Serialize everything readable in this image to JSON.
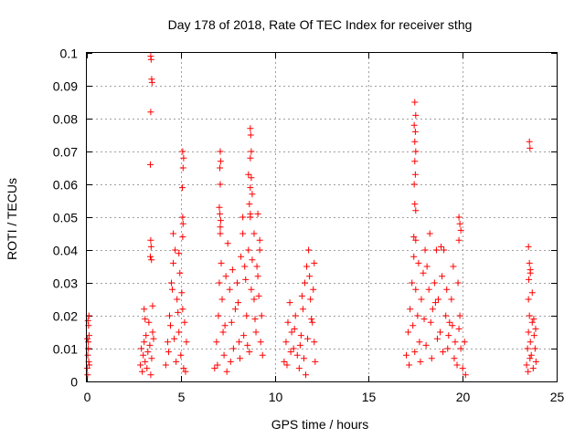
{
  "chart_data": {
    "type": "scatter",
    "title": "Day 178 of 2018, Rate Of TEC Index for receiver sthg",
    "xlabel": "GPS time / hours",
    "ylabel": "ROTI / TECUs",
    "xlim": [
      0,
      25
    ],
    "ylim": [
      0,
      0.1
    ],
    "xticks": [
      0,
      5,
      10,
      15,
      20,
      25
    ],
    "xtick_labels": [
      "0",
      "5",
      "10",
      "15",
      "20",
      "25"
    ],
    "yticks": [
      0,
      0.01,
      0.02,
      0.03,
      0.04,
      0.05,
      0.06,
      0.07,
      0.08,
      0.09,
      0.1
    ],
    "ytick_labels": [
      "0",
      "0.01",
      "0.02",
      "0.03",
      "0.04",
      "0.05",
      "0.06",
      "0.07",
      "0.08",
      "0.09",
      "0.1"
    ],
    "grid": true,
    "marker": "+",
    "color": "#ff0000",
    "series": [
      {
        "name": "ROTI",
        "points": [
          [
            0.02,
            0.004
          ],
          [
            0.05,
            0.008
          ],
          [
            0.08,
            0.012
          ],
          [
            0.1,
            0.006
          ],
          [
            0.12,
            0.014
          ],
          [
            0.04,
            0.002
          ],
          [
            0.07,
            0.01
          ],
          [
            0.09,
            0.017
          ],
          [
            0.11,
            0.02
          ],
          [
            0.06,
            0.0185
          ],
          [
            0.13,
            0.005
          ],
          [
            0.03,
            0.013
          ],
          [
            2.85,
            0.005
          ],
          [
            2.9,
            0.01
          ],
          [
            2.95,
            0.003
          ],
          [
            3.0,
            0.008
          ],
          [
            3.05,
            0.012
          ],
          [
            3.1,
            0.006
          ],
          [
            3.15,
            0.014
          ],
          [
            3.2,
            0.004
          ],
          [
            3.25,
            0.009
          ],
          [
            3.3,
            0.018
          ],
          [
            3.35,
            0.011
          ],
          [
            3.4,
            0.002
          ],
          [
            3.45,
            0.007
          ],
          [
            3.5,
            0.015
          ],
          [
            3.55,
            0.013
          ],
          [
            3.05,
            0.022
          ],
          [
            3.1,
            0.019
          ],
          [
            3.5,
            0.023
          ],
          [
            3.4,
            0.099
          ],
          [
            3.42,
            0.098
          ],
          [
            3.45,
            0.092
          ],
          [
            3.47,
            0.091
          ],
          [
            3.4,
            0.082
          ],
          [
            3.38,
            0.066
          ],
          [
            3.4,
            0.043
          ],
          [
            3.42,
            0.041
          ],
          [
            3.38,
            0.038
          ],
          [
            3.44,
            0.037
          ],
          [
            4.2,
            0.005
          ],
          [
            4.3,
            0.012
          ],
          [
            4.4,
            0.02
          ],
          [
            4.5,
            0.03
          ],
          [
            4.6,
            0.036
          ],
          [
            4.7,
            0.04
          ],
          [
            4.8,
            0.025
          ],
          [
            4.9,
            0.015
          ],
          [
            5.0,
            0.008
          ],
          [
            5.1,
            0.022
          ],
          [
            5.2,
            0.018
          ],
          [
            5.3,
            0.012
          ],
          [
            4.35,
            0.009
          ],
          [
            4.55,
            0.028
          ],
          [
            4.75,
            0.006
          ],
          [
            4.95,
            0.033
          ],
          [
            5.15,
            0.004
          ],
          [
            4.45,
            0.017
          ],
          [
            4.65,
            0.013
          ],
          [
            5.05,
            0.027
          ],
          [
            4.85,
            0.021
          ],
          [
            5.25,
            0.003
          ],
          [
            5.1,
            0.07
          ],
          [
            5.15,
            0.068
          ],
          [
            5.12,
            0.065
          ],
          [
            5.08,
            0.059
          ],
          [
            5.1,
            0.05
          ],
          [
            5.12,
            0.048
          ],
          [
            5.1,
            0.044
          ],
          [
            4.6,
            0.045
          ],
          [
            4.9,
            0.039
          ],
          [
            6.8,
            0.004
          ],
          [
            6.9,
            0.012
          ],
          [
            7.0,
            0.02
          ],
          [
            7.05,
            0.03
          ],
          [
            7.1,
            0.045
          ],
          [
            7.15,
            0.036
          ],
          [
            7.2,
            0.025
          ],
          [
            7.25,
            0.015
          ],
          [
            7.3,
            0.008
          ],
          [
            7.4,
            0.032
          ],
          [
            7.5,
            0.042
          ],
          [
            7.6,
            0.028
          ],
          [
            7.7,
            0.018
          ],
          [
            7.8,
            0.01
          ],
          [
            7.9,
            0.022
          ],
          [
            8.0,
            0.03
          ],
          [
            8.1,
            0.012
          ],
          [
            8.2,
            0.038
          ],
          [
            8.3,
            0.045
          ],
          [
            8.4,
            0.035
          ],
          [
            8.5,
            0.02
          ],
          [
            8.6,
            0.04
          ],
          [
            8.7,
            0.05
          ],
          [
            8.8,
            0.037
          ],
          [
            8.9,
            0.025
          ],
          [
            9.0,
            0.015
          ],
          [
            9.1,
            0.032
          ],
          [
            9.2,
            0.04
          ],
          [
            9.3,
            0.02
          ],
          [
            9.35,
            0.008
          ],
          [
            6.95,
            0.005
          ],
          [
            7.35,
            0.017
          ],
          [
            7.65,
            0.006
          ],
          [
            8.05,
            0.024
          ],
          [
            8.35,
            0.014
          ],
          [
            8.65,
            0.009
          ],
          [
            8.95,
            0.019
          ],
          [
            9.25,
            0.012
          ],
          [
            7.45,
            0.003
          ],
          [
            8.15,
            0.007
          ],
          [
            8.75,
            0.028
          ],
          [
            9.15,
            0.026
          ],
          [
            7.75,
            0.034
          ],
          [
            8.45,
            0.031
          ],
          [
            8.55,
            0.011
          ],
          [
            9.05,
            0.035
          ],
          [
            7.1,
            0.07
          ],
          [
            7.12,
            0.067
          ],
          [
            7.08,
            0.065
          ],
          [
            7.1,
            0.06
          ],
          [
            7.05,
            0.053
          ],
          [
            7.08,
            0.051
          ],
          [
            7.12,
            0.049
          ],
          [
            7.1,
            0.047
          ],
          [
            8.7,
            0.077
          ],
          [
            8.72,
            0.075
          ],
          [
            8.75,
            0.07
          ],
          [
            8.7,
            0.068
          ],
          [
            8.6,
            0.063
          ],
          [
            8.75,
            0.062
          ],
          [
            8.7,
            0.059
          ],
          [
            8.8,
            0.057
          ],
          [
            8.65,
            0.054
          ],
          [
            8.7,
            0.051
          ],
          [
            8.3,
            0.05
          ],
          [
            9.1,
            0.051
          ],
          [
            8.9,
            0.045
          ],
          [
            9.2,
            0.043
          ],
          [
            10.5,
            0.006
          ],
          [
            10.6,
            0.012
          ],
          [
            10.7,
            0.018
          ],
          [
            10.8,
            0.024
          ],
          [
            10.9,
            0.015
          ],
          [
            11.0,
            0.01
          ],
          [
            11.1,
            0.02
          ],
          [
            11.2,
            0.008
          ],
          [
            11.3,
            0.004
          ],
          [
            11.4,
            0.014
          ],
          [
            11.5,
            0.022
          ],
          [
            11.6,
            0.03
          ],
          [
            11.7,
            0.035
          ],
          [
            11.8,
            0.04
          ],
          [
            11.9,
            0.025
          ],
          [
            12.0,
            0.018
          ],
          [
            12.1,
            0.012
          ],
          [
            12.15,
            0.006
          ],
          [
            10.65,
            0.005
          ],
          [
            10.85,
            0.009
          ],
          [
            11.05,
            0.016
          ],
          [
            11.35,
            0.011
          ],
          [
            11.55,
            0.007
          ],
          [
            11.75,
            0.013
          ],
          [
            11.95,
            0.019
          ],
          [
            12.05,
            0.028
          ],
          [
            11.65,
            0.002
          ],
          [
            11.45,
            0.026
          ],
          [
            12.1,
            0.036
          ],
          [
            11.85,
            0.032
          ],
          [
            17.0,
            0.008
          ],
          [
            17.1,
            0.015
          ],
          [
            17.2,
            0.022
          ],
          [
            17.3,
            0.03
          ],
          [
            17.4,
            0.038
          ],
          [
            17.5,
            0.028
          ],
          [
            17.6,
            0.02
          ],
          [
            17.7,
            0.012
          ],
          [
            17.8,
            0.025
          ],
          [
            17.9,
            0.033
          ],
          [
            18.0,
            0.04
          ],
          [
            18.1,
            0.035
          ],
          [
            18.2,
            0.028
          ],
          [
            18.3,
            0.018
          ],
          [
            18.4,
            0.022
          ],
          [
            18.5,
            0.03
          ],
          [
            18.6,
            0.04
          ],
          [
            18.7,
            0.025
          ],
          [
            18.8,
            0.015
          ],
          [
            18.9,
            0.032
          ],
          [
            19.0,
            0.04
          ],
          [
            19.1,
            0.02
          ],
          [
            19.2,
            0.01
          ],
          [
            19.3,
            0.018
          ],
          [
            19.4,
            0.025
          ],
          [
            19.5,
            0.035
          ],
          [
            19.6,
            0.012
          ],
          [
            19.7,
            0.005
          ],
          [
            19.8,
            0.016
          ],
          [
            19.9,
            0.01
          ],
          [
            20.0,
            0.004
          ],
          [
            20.1,
            0.012
          ],
          [
            20.15,
            0.002
          ],
          [
            17.15,
            0.005
          ],
          [
            17.45,
            0.009
          ],
          [
            17.75,
            0.006
          ],
          [
            18.05,
            0.011
          ],
          [
            18.35,
            0.007
          ],
          [
            18.65,
            0.013
          ],
          [
            18.95,
            0.009
          ],
          [
            19.25,
            0.014
          ],
          [
            19.55,
            0.007
          ],
          [
            19.85,
            0.02
          ],
          [
            17.35,
            0.017
          ],
          [
            17.65,
            0.036
          ],
          [
            17.95,
            0.019
          ],
          [
            18.25,
            0.045
          ],
          [
            18.55,
            0.024
          ],
          [
            18.85,
            0.041
          ],
          [
            19.15,
            0.028
          ],
          [
            19.45,
            0.017
          ],
          [
            19.75,
            0.03
          ],
          [
            17.45,
            0.085
          ],
          [
            17.5,
            0.081
          ],
          [
            17.42,
            0.078
          ],
          [
            17.48,
            0.076
          ],
          [
            17.45,
            0.073
          ],
          [
            17.5,
            0.07
          ],
          [
            17.45,
            0.067
          ],
          [
            17.48,
            0.063
          ],
          [
            17.42,
            0.06
          ],
          [
            17.45,
            0.054
          ],
          [
            17.5,
            0.052
          ],
          [
            17.4,
            0.044
          ],
          [
            17.5,
            0.043
          ],
          [
            19.8,
            0.05
          ],
          [
            19.85,
            0.048
          ],
          [
            19.9,
            0.046
          ],
          [
            19.8,
            0.043
          ],
          [
            23.4,
            0.005
          ],
          [
            23.45,
            0.01
          ],
          [
            23.5,
            0.015
          ],
          [
            23.55,
            0.02
          ],
          [
            23.6,
            0.012
          ],
          [
            23.65,
            0.008
          ],
          [
            23.7,
            0.018
          ],
          [
            23.75,
            0.004
          ],
          [
            23.8,
            0.014
          ],
          [
            23.85,
            0.01
          ],
          [
            23.9,
            0.006
          ],
          [
            23.5,
            0.025
          ],
          [
            23.6,
            0.033
          ],
          [
            23.7,
            0.027
          ],
          [
            23.48,
            0.003
          ],
          [
            23.58,
            0.007
          ],
          [
            23.78,
            0.019
          ],
          [
            23.88,
            0.016
          ],
          [
            23.55,
            0.073
          ],
          [
            23.58,
            0.071
          ],
          [
            23.5,
            0.041
          ],
          [
            23.55,
            0.036
          ],
          [
            23.6,
            0.034
          ],
          [
            23.52,
            0.031
          ]
        ]
      }
    ]
  }
}
